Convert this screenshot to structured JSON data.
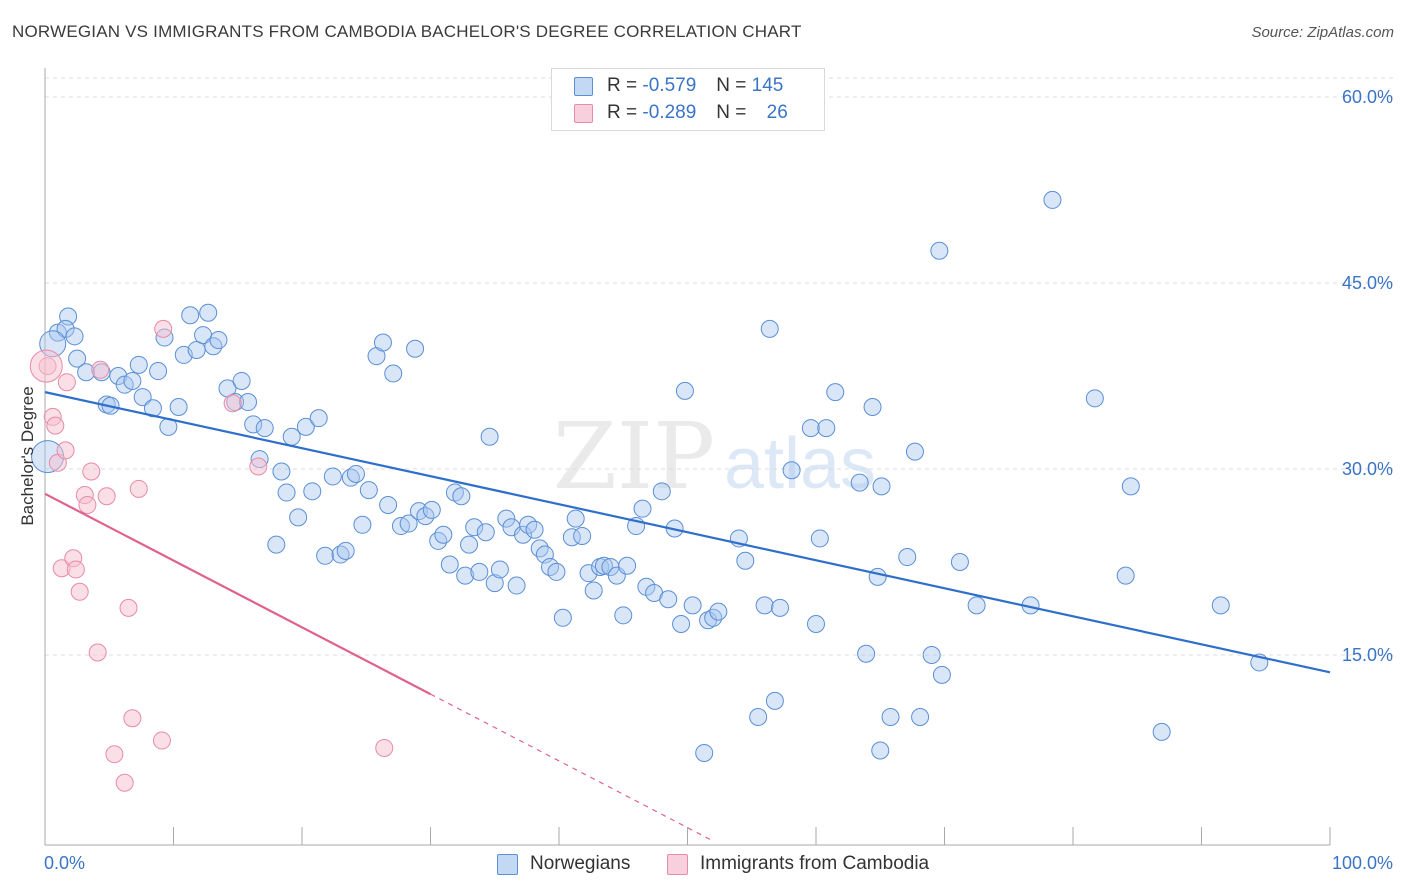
{
  "title": "NORWEGIAN VS IMMIGRANTS FROM CAMBODIA BACHELOR'S DEGREE CORRELATION CHART",
  "source": "Source: ZipAtlas.com",
  "watermark": {
    "zip": "ZIP",
    "atlas": "atlas"
  },
  "legend": {
    "r_label": "R =",
    "n_label": "N =",
    "rows": [
      {
        "r": "-0.579",
        "n": "145"
      },
      {
        "r": "-0.289",
        "n": "26"
      }
    ]
  },
  "colors": {
    "blue_fill": "#a9c8ef",
    "blue_stroke": "#5b8fd6",
    "blue_line": "#2f6fcc",
    "pink_fill": "#f5bfd0",
    "pink_stroke": "#e98aa8",
    "pink_line": "#e0628c",
    "axis_text": "#3a74c6",
    "grid": "#dddddd"
  },
  "chart_data": {
    "type": "scatter",
    "xlabel": "",
    "ylabel": "Bachelor's Degree",
    "xlim": [
      0,
      100
    ],
    "ylim": [
      0,
      60
    ],
    "x_tick_labels": [
      "0.0%",
      "100.0%"
    ],
    "y_ticks": [
      {
        "value": 15,
        "label": "15.0%"
      },
      {
        "value": 30,
        "label": "30.0%"
      },
      {
        "value": 45,
        "label": "45.0%"
      },
      {
        "value": 60,
        "label": "60.0%"
      }
    ],
    "series": [
      {
        "name": "Norwegians",
        "r": -0.579,
        "n": 145,
        "trend": {
          "x0": 0,
          "y0": 36.2,
          "x1": 100,
          "y1": 13.6,
          "dashed_from": null
        },
        "points": [
          [
            1.0,
            41.0
          ],
          [
            1.8,
            42.3
          ],
          [
            1.6,
            41.3
          ],
          [
            2.3,
            40.7
          ],
          [
            2.5,
            38.9
          ],
          [
            3.2,
            37.8
          ],
          [
            4.4,
            37.8
          ],
          [
            4.8,
            35.2
          ],
          [
            5.1,
            35.1
          ],
          [
            5.7,
            37.5
          ],
          [
            6.2,
            36.8
          ],
          [
            6.8,
            37.1
          ],
          [
            7.3,
            38.4
          ],
          [
            7.6,
            35.8
          ],
          [
            8.4,
            34.9
          ],
          [
            8.8,
            37.9
          ],
          [
            9.3,
            40.6
          ],
          [
            9.6,
            33.4
          ],
          [
            10.4,
            35.0
          ],
          [
            10.8,
            39.2
          ],
          [
            11.3,
            42.4
          ],
          [
            11.8,
            39.6
          ],
          [
            12.3,
            40.8
          ],
          [
            12.7,
            42.6
          ],
          [
            13.1,
            39.9
          ],
          [
            13.5,
            40.4
          ],
          [
            14.2,
            36.5
          ],
          [
            14.8,
            35.4
          ],
          [
            15.3,
            37.1
          ],
          [
            15.8,
            35.4
          ],
          [
            16.2,
            33.6
          ],
          [
            16.7,
            30.8
          ],
          [
            17.1,
            33.3
          ],
          [
            18.0,
            23.9
          ],
          [
            18.4,
            29.8
          ],
          [
            18.8,
            28.1
          ],
          [
            19.2,
            32.6
          ],
          [
            19.7,
            26.1
          ],
          [
            20.3,
            33.4
          ],
          [
            20.8,
            28.2
          ],
          [
            21.3,
            34.1
          ],
          [
            21.8,
            23.0
          ],
          [
            22.4,
            29.4
          ],
          [
            23.0,
            23.1
          ],
          [
            23.4,
            23.4
          ],
          [
            23.8,
            29.3
          ],
          [
            24.2,
            29.6
          ],
          [
            24.7,
            25.5
          ],
          [
            25.2,
            28.3
          ],
          [
            25.8,
            39.1
          ],
          [
            26.3,
            40.2
          ],
          [
            26.7,
            27.1
          ],
          [
            27.1,
            37.7
          ],
          [
            27.7,
            25.4
          ],
          [
            28.3,
            25.6
          ],
          [
            28.8,
            39.7
          ],
          [
            29.1,
            26.6
          ],
          [
            29.6,
            26.2
          ],
          [
            30.1,
            26.7
          ],
          [
            30.6,
            24.2
          ],
          [
            31.0,
            24.7
          ],
          [
            31.5,
            22.3
          ],
          [
            31.9,
            28.1
          ],
          [
            32.4,
            27.8
          ],
          [
            32.7,
            21.4
          ],
          [
            33.0,
            23.9
          ],
          [
            33.4,
            25.3
          ],
          [
            33.8,
            21.7
          ],
          [
            34.3,
            24.9
          ],
          [
            34.6,
            32.6
          ],
          [
            35.0,
            20.8
          ],
          [
            35.4,
            21.9
          ],
          [
            35.9,
            26.0
          ],
          [
            36.3,
            25.3
          ],
          [
            36.7,
            20.6
          ],
          [
            37.2,
            24.7
          ],
          [
            37.6,
            25.5
          ],
          [
            38.1,
            25.1
          ],
          [
            38.5,
            23.6
          ],
          [
            38.9,
            23.1
          ],
          [
            39.3,
            22.1
          ],
          [
            39.8,
            21.7
          ],
          [
            40.3,
            18.0
          ],
          [
            41.0,
            24.5
          ],
          [
            41.3,
            26.0
          ],
          [
            41.8,
            24.6
          ],
          [
            42.3,
            21.6
          ],
          [
            42.7,
            20.2
          ],
          [
            43.2,
            22.1
          ],
          [
            43.5,
            22.2
          ],
          [
            44.0,
            22.1
          ],
          [
            44.5,
            21.4
          ],
          [
            45.0,
            18.2
          ],
          [
            45.3,
            22.2
          ],
          [
            46.0,
            25.4
          ],
          [
            46.5,
            26.8
          ],
          [
            46.8,
            20.5
          ],
          [
            47.4,
            20.0
          ],
          [
            48.0,
            28.2
          ],
          [
            48.5,
            19.5
          ],
          [
            49.0,
            25.2
          ],
          [
            49.5,
            17.5
          ],
          [
            49.8,
            36.3
          ],
          [
            50.4,
            19.0
          ],
          [
            51.3,
            7.1
          ],
          [
            51.6,
            17.8
          ],
          [
            52.0,
            18.0
          ],
          [
            52.4,
            18.5
          ],
          [
            54.0,
            24.4
          ],
          [
            54.5,
            22.6
          ],
          [
            55.5,
            10.0
          ],
          [
            56.0,
            19.0
          ],
          [
            56.4,
            41.3
          ],
          [
            56.8,
            11.3
          ],
          [
            57.2,
            18.8
          ],
          [
            58.1,
            29.9
          ],
          [
            59.6,
            33.3
          ],
          [
            60.0,
            17.5
          ],
          [
            60.3,
            24.4
          ],
          [
            60.8,
            33.3
          ],
          [
            61.5,
            36.2
          ],
          [
            63.4,
            28.9
          ],
          [
            63.9,
            15.1
          ],
          [
            64.4,
            35.0
          ],
          [
            64.8,
            21.3
          ],
          [
            65.0,
            7.3
          ],
          [
            65.1,
            28.6
          ],
          [
            65.8,
            10.0
          ],
          [
            67.1,
            22.9
          ],
          [
            67.7,
            31.4
          ],
          [
            68.1,
            10.0
          ],
          [
            69.0,
            15.0
          ],
          [
            69.6,
            47.6
          ],
          [
            69.8,
            13.4
          ],
          [
            71.2,
            22.5
          ],
          [
            72.5,
            19.0
          ],
          [
            76.7,
            19.0
          ],
          [
            78.4,
            51.7
          ],
          [
            81.7,
            35.7
          ],
          [
            84.1,
            21.4
          ],
          [
            84.5,
            28.6
          ],
          [
            86.9,
            8.8
          ],
          [
            91.5,
            19.0
          ],
          [
            94.5,
            14.4
          ]
        ]
      },
      {
        "name": "Immigrants from Cambodia",
        "r": -0.289,
        "n": 26,
        "trend": {
          "x0": 0,
          "y0": 28.0,
          "x1": 52.0,
          "y1": 0,
          "dashed_from": 30.0
        },
        "points": [
          [
            0.2,
            38.3
          ],
          [
            0.6,
            34.2
          ],
          [
            0.8,
            33.5
          ],
          [
            1.0,
            30.5
          ],
          [
            1.3,
            22.0
          ],
          [
            1.6,
            31.5
          ],
          [
            1.7,
            37.0
          ],
          [
            2.2,
            22.8
          ],
          [
            2.4,
            21.9
          ],
          [
            2.7,
            20.1
          ],
          [
            3.1,
            27.9
          ],
          [
            3.3,
            27.1
          ],
          [
            3.6,
            29.8
          ],
          [
            4.1,
            15.2
          ],
          [
            4.3,
            38.0
          ],
          [
            4.8,
            27.8
          ],
          [
            5.4,
            7.0
          ],
          [
            6.2,
            4.7
          ],
          [
            6.5,
            18.8
          ],
          [
            6.8,
            9.9
          ],
          [
            7.3,
            28.4
          ],
          [
            9.1,
            8.1
          ],
          [
            9.2,
            41.3
          ],
          [
            14.6,
            35.3
          ],
          [
            16.6,
            30.2
          ],
          [
            26.4,
            7.5
          ]
        ]
      }
    ],
    "legend_position": "top-center"
  }
}
